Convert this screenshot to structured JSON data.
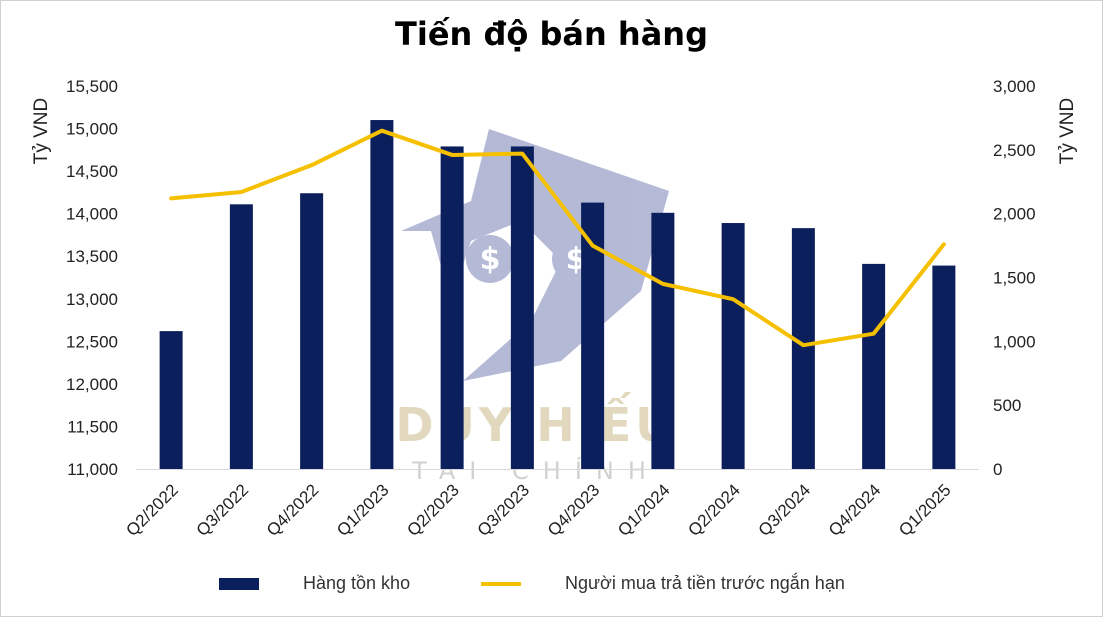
{
  "chart_data": {
    "type": "bar+line",
    "title": "Tiến độ bán hàng",
    "categories": [
      "Q2/2022",
      "Q3/2022",
      "Q4/2022",
      "Q1/2023",
      "Q2/2023",
      "Q3/2023",
      "Q4/2023",
      "Q1/2024",
      "Q2/2024",
      "Q3/2024",
      "Q4/2024",
      "Q1/2025"
    ],
    "series": [
      {
        "name": "Hàng tồn kho",
        "type": "bar",
        "axis": "left",
        "color": "#0b1f5c",
        "values": [
          12620,
          14110,
          14240,
          15100,
          14790,
          14790,
          14130,
          14010,
          13890,
          13830,
          13410,
          13390
        ]
      },
      {
        "name": "Người mua trả tiền trước ngắn hạn",
        "type": "line",
        "axis": "right",
        "color": "#f5c000",
        "values": [
          2120,
          2170,
          2380,
          2650,
          2460,
          2470,
          1750,
          1450,
          1330,
          970,
          1060,
          1760
        ]
      }
    ],
    "y_left": {
      "label": "Tỷ VND",
      "min": 11000,
      "max": 15500,
      "ticks": [
        "11,000",
        "11,500",
        "12,000",
        "12,500",
        "13,000",
        "13,500",
        "14,000",
        "14,500",
        "15,000",
        "15,500"
      ]
    },
    "y_right": {
      "label": "Tỷ VND",
      "min": 0,
      "max": 3000,
      "ticks": [
        "0",
        "500",
        "1,000",
        "1,500",
        "2,000",
        "2,500",
        "3,000"
      ]
    },
    "legend_position": "bottom",
    "grid": false
  },
  "watermark": {
    "line1": "DUY HIẾU",
    "line2": "TÀI CHÍNH"
  }
}
